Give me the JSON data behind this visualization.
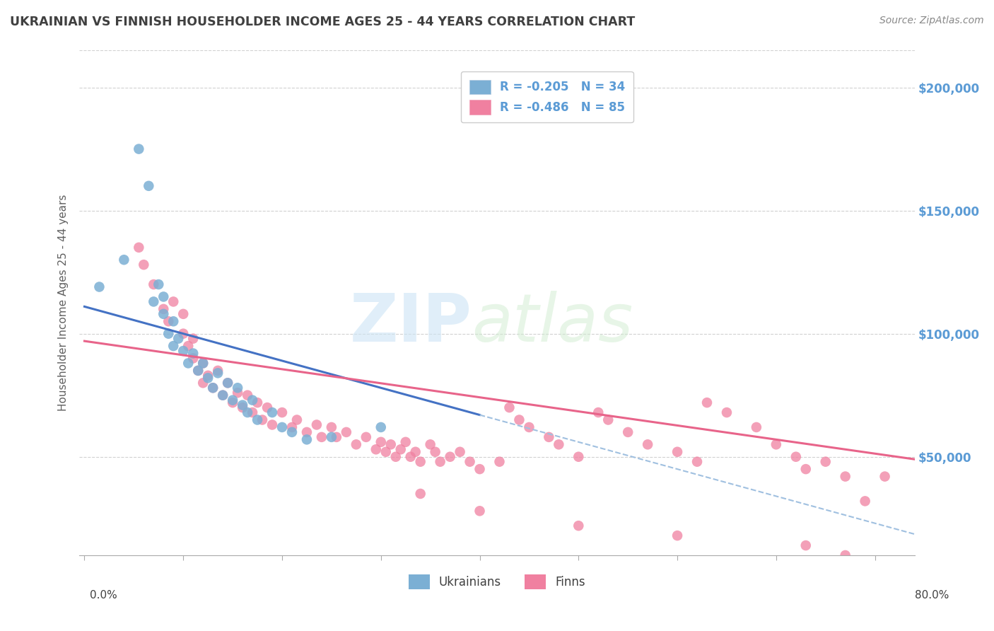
{
  "title": "UKRAINIAN VS FINNISH HOUSEHOLDER INCOME AGES 25 - 44 YEARS CORRELATION CHART",
  "source": "Source: ZipAtlas.com",
  "ylabel": "Householder Income Ages 25 - 44 years",
  "ytick_labels": [
    "$50,000",
    "$100,000",
    "$150,000",
    "$200,000"
  ],
  "ytick_values": [
    50000,
    100000,
    150000,
    200000
  ],
  "ylim": [
    10000,
    215000
  ],
  "xlim": [
    -0.005,
    0.84
  ],
  "watermark_zip": "ZIP",
  "watermark_atlas": "atlas",
  "ukrainian_color": "#7bafd4",
  "finn_color": "#f080a0",
  "background_color": "#ffffff",
  "grid_color": "#cccccc",
  "title_color": "#404040",
  "axis_label_color": "#606060",
  "ytick_color": "#5b9bd5",
  "legend_color": "#5b9bd5",
  "trendline_ukrainian_color": "#4472c4",
  "trendline_finn_color": "#e8648a",
  "trendline_dash_color": "#a0c0e0",
  "ukrainian_x": [
    0.015,
    0.04,
    0.055,
    0.065,
    0.07,
    0.075,
    0.08,
    0.08,
    0.085,
    0.09,
    0.09,
    0.095,
    0.1,
    0.105,
    0.11,
    0.115,
    0.12,
    0.125,
    0.13,
    0.135,
    0.14,
    0.145,
    0.15,
    0.155,
    0.16,
    0.165,
    0.17,
    0.175,
    0.19,
    0.2,
    0.21,
    0.225,
    0.25,
    0.3
  ],
  "ukrainian_y": [
    119000,
    130000,
    175000,
    160000,
    113000,
    120000,
    108000,
    115000,
    100000,
    95000,
    105000,
    98000,
    93000,
    88000,
    92000,
    85000,
    88000,
    82000,
    78000,
    84000,
    75000,
    80000,
    73000,
    78000,
    71000,
    68000,
    73000,
    65000,
    68000,
    62000,
    60000,
    57000,
    58000,
    62000
  ],
  "finn_x": [
    0.055,
    0.06,
    0.07,
    0.08,
    0.085,
    0.09,
    0.1,
    0.1,
    0.105,
    0.11,
    0.11,
    0.115,
    0.12,
    0.12,
    0.125,
    0.13,
    0.135,
    0.14,
    0.145,
    0.15,
    0.155,
    0.16,
    0.165,
    0.17,
    0.175,
    0.18,
    0.185,
    0.19,
    0.2,
    0.21,
    0.215,
    0.225,
    0.235,
    0.24,
    0.25,
    0.255,
    0.265,
    0.275,
    0.285,
    0.295,
    0.3,
    0.305,
    0.31,
    0.315,
    0.32,
    0.325,
    0.33,
    0.335,
    0.34,
    0.35,
    0.355,
    0.36,
    0.37,
    0.38,
    0.39,
    0.4,
    0.42,
    0.43,
    0.44,
    0.45,
    0.47,
    0.48,
    0.5,
    0.52,
    0.53,
    0.55,
    0.57,
    0.6,
    0.62,
    0.63,
    0.65,
    0.68,
    0.7,
    0.72,
    0.73,
    0.75,
    0.77,
    0.79,
    0.34,
    0.4,
    0.5,
    0.6,
    0.73,
    0.77,
    0.81
  ],
  "finn_y": [
    135000,
    128000,
    120000,
    110000,
    105000,
    113000,
    100000,
    108000,
    95000,
    90000,
    98000,
    85000,
    88000,
    80000,
    83000,
    78000,
    85000,
    75000,
    80000,
    72000,
    76000,
    70000,
    75000,
    68000,
    72000,
    65000,
    70000,
    63000,
    68000,
    62000,
    65000,
    60000,
    63000,
    58000,
    62000,
    58000,
    60000,
    55000,
    58000,
    53000,
    56000,
    52000,
    55000,
    50000,
    53000,
    56000,
    50000,
    52000,
    48000,
    55000,
    52000,
    48000,
    50000,
    52000,
    48000,
    45000,
    48000,
    70000,
    65000,
    62000,
    58000,
    55000,
    50000,
    68000,
    65000,
    60000,
    55000,
    52000,
    48000,
    72000,
    68000,
    62000,
    55000,
    50000,
    45000,
    48000,
    42000,
    32000,
    35000,
    28000,
    22000,
    18000,
    14000,
    10000,
    42000
  ]
}
